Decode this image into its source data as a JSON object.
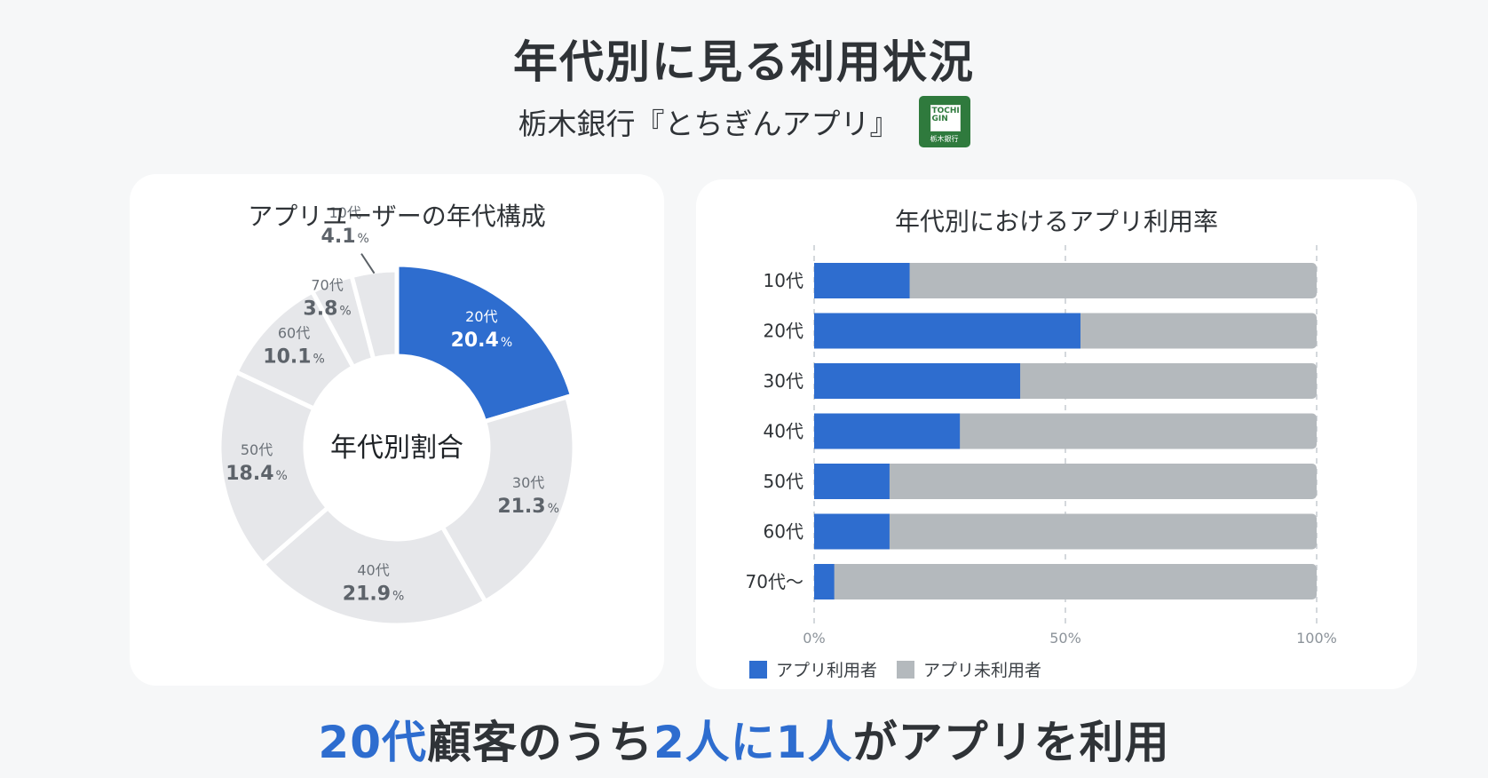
{
  "header": {
    "title": "年代別に見る利用状況",
    "subtitle": "栃木銀行『とちぎんアプリ』",
    "logo_text_top": "TOCHI GIN",
    "logo_text_bottom": "栃木銀行"
  },
  "colors": {
    "accent": "#2e6dcf",
    "grey_segment": "#e6e7ea",
    "grey_bar": "#b4b9bd",
    "logo_green": "#2f7a3d"
  },
  "left_card": {
    "title": "アプリユーザーの年代構成",
    "center_label": "年代別割合"
  },
  "right_card": {
    "title": "年代別におけるアプリ利用率"
  },
  "footer": {
    "part1": "20代",
    "part2": "顧客のうち",
    "part3": "2人に1人",
    "part4": "がアプリを利用"
  },
  "chart_data": [
    {
      "type": "pie",
      "title": "アプリユーザーの年代構成",
      "center_label": "年代別割合",
      "categories": [
        "20代",
        "30代",
        "40代",
        "50代",
        "60代",
        "70代",
        "10代"
      ],
      "values": [
        20.4,
        21.3,
        21.9,
        18.4,
        10.1,
        3.8,
        4.1
      ],
      "value_labels": [
        "20.4",
        "21.3",
        "21.9",
        "18.4",
        "10.1",
        "3.8",
        "4.1"
      ],
      "unit": "%",
      "highlight": "20代"
    },
    {
      "type": "bar",
      "orientation": "horizontal",
      "stacked": true,
      "title": "年代別におけるアプリ利用率",
      "categories": [
        "10代",
        "20代",
        "30代",
        "40代",
        "50代",
        "60代",
        "70代〜"
      ],
      "series": [
        {
          "name": "アプリ利用者",
          "values": [
            19,
            53,
            41,
            29,
            15,
            15,
            4
          ]
        },
        {
          "name": "アプリ未利用者",
          "values": [
            81,
            47,
            59,
            71,
            85,
            85,
            96
          ]
        }
      ],
      "xlim": [
        0,
        100
      ],
      "x_ticks": [
        "0%",
        "50%",
        "100%"
      ],
      "grid": true,
      "legend_position": "bottom-left"
    }
  ]
}
